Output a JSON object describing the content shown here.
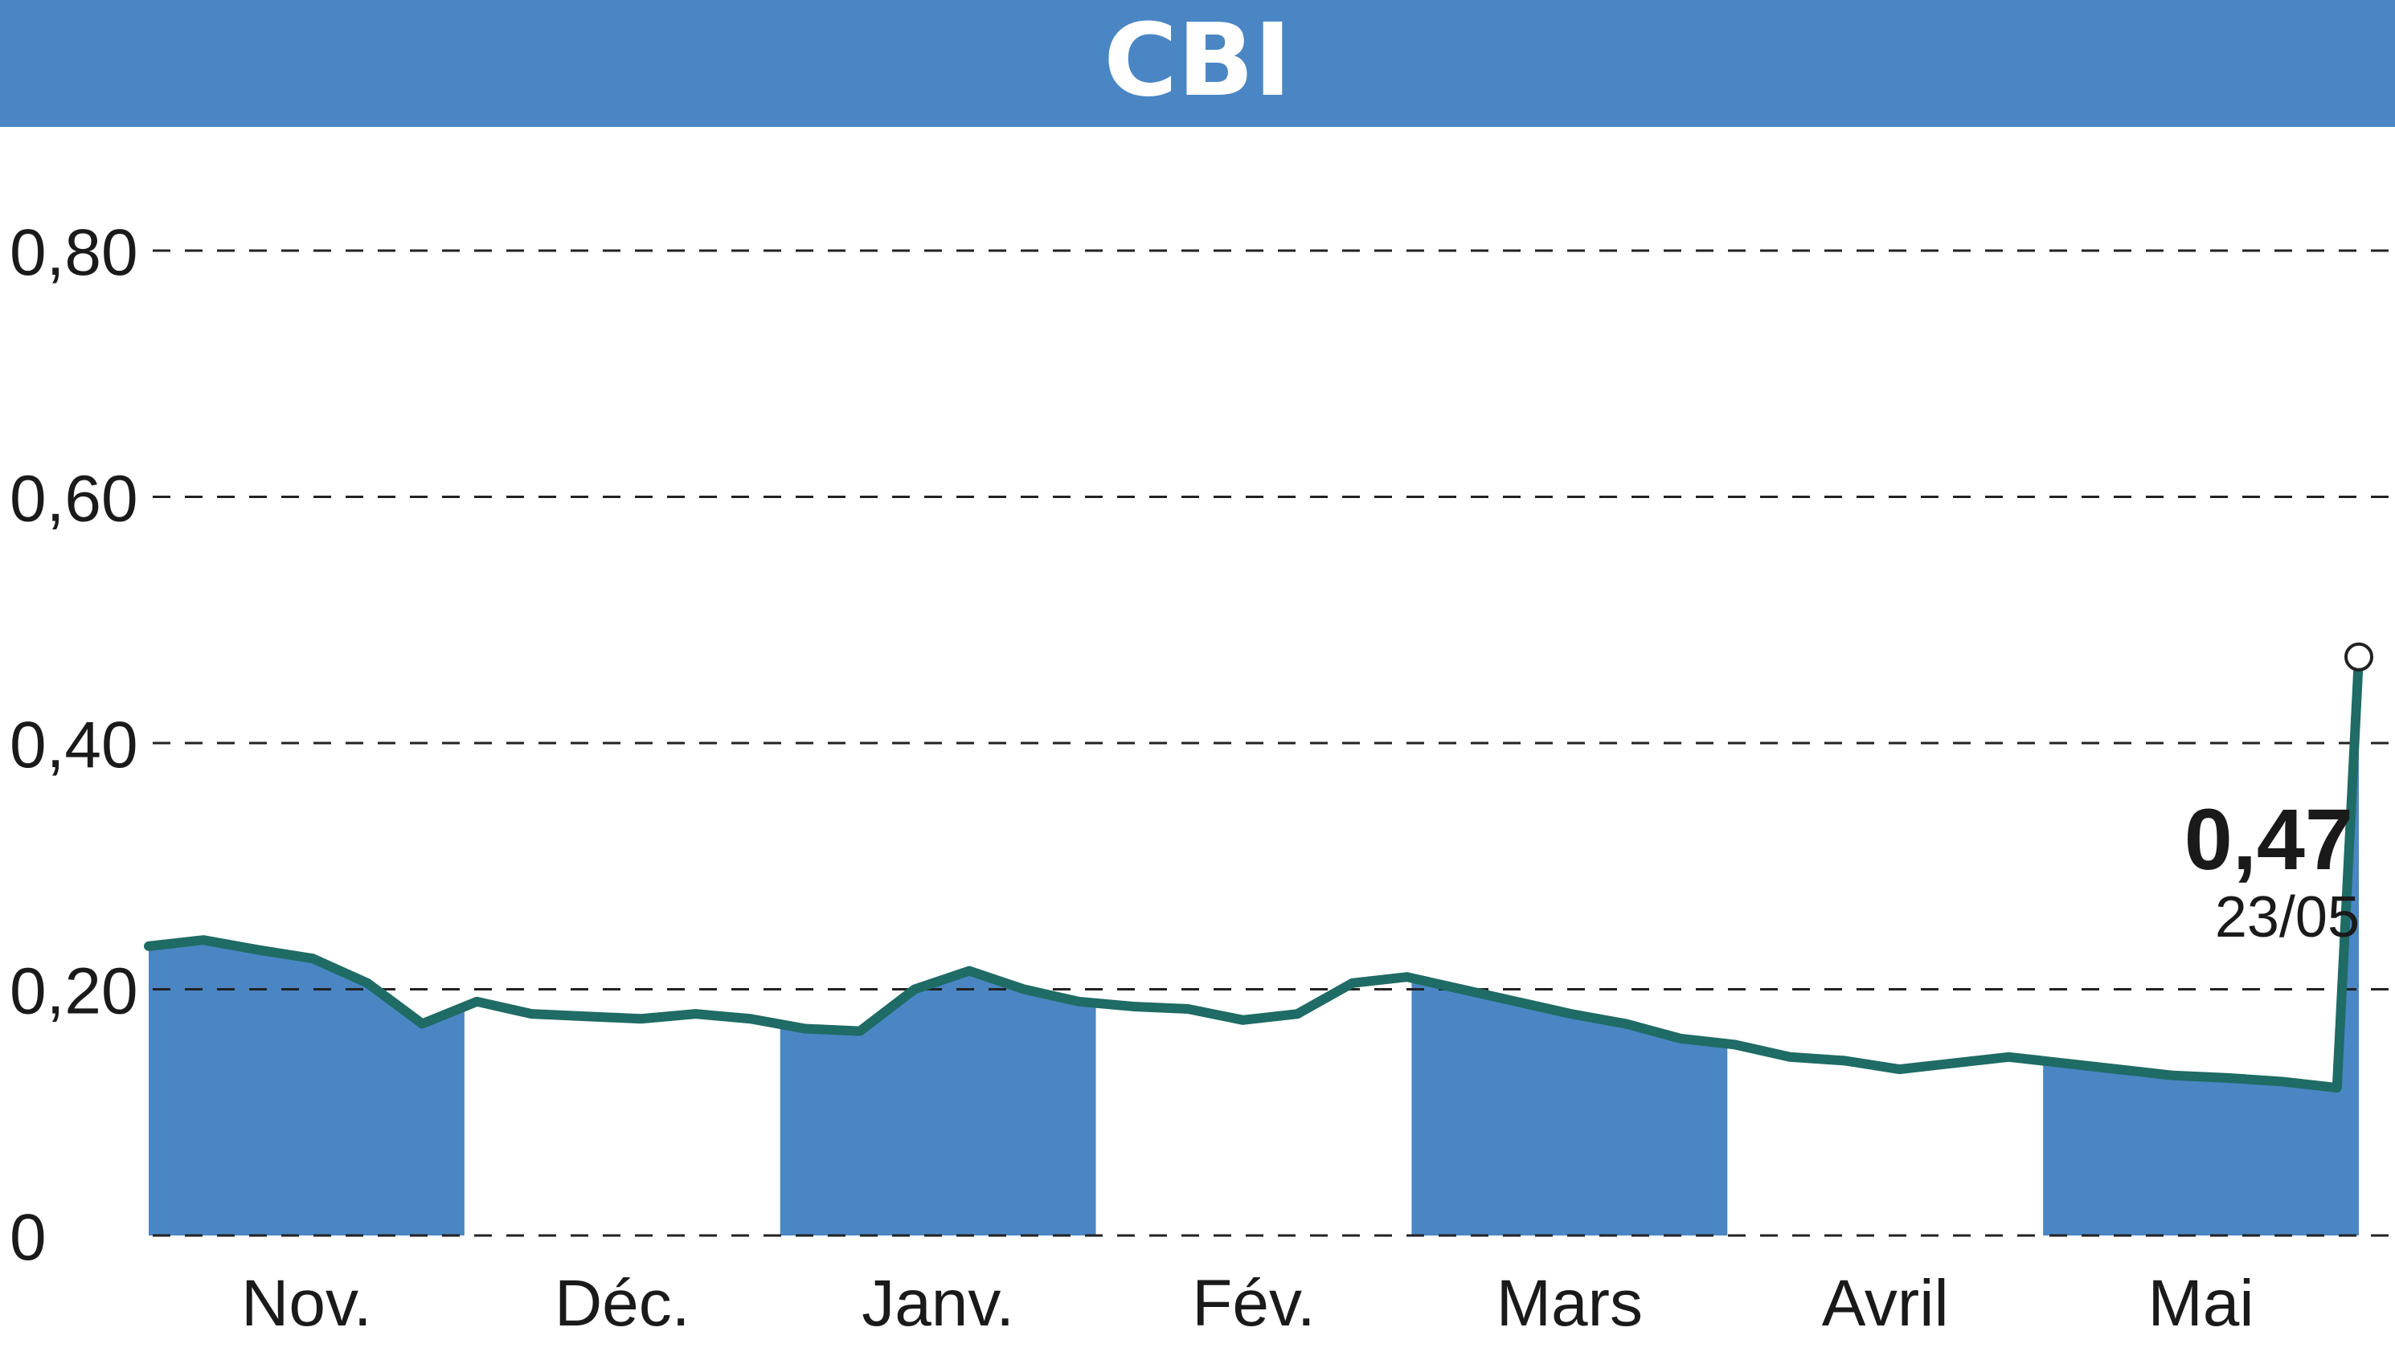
{
  "title": "CBI",
  "colors": {
    "banner": "#4a86c4",
    "fill": "#4a86c4",
    "line": "#1f6b65",
    "grid": "#222222",
    "text": "#1a1a1a"
  },
  "chart_data": {
    "type": "line",
    "title": "CBI",
    "xlabel": "",
    "ylabel": "",
    "ylim": [
      0,
      0.8
    ],
    "grid": true,
    "y_ticks": [
      "0",
      "0,20",
      "0,40",
      "0,60",
      "0,80"
    ],
    "y_tick_values": [
      0,
      0.2,
      0.4,
      0.6,
      0.8
    ],
    "months": [
      "Nov.",
      "Déc.",
      "Janv.",
      "Fév.",
      "Mars",
      "Avril",
      "Mai"
    ],
    "shaded_months": [
      "Nov.",
      "Janv.",
      "Mars",
      "Mai"
    ],
    "last_value": "0,47",
    "last_date": "23/05",
    "series": [
      {
        "x": [
          0,
          5,
          10,
          15,
          20,
          25,
          30,
          35,
          40,
          45,
          50,
          55,
          60,
          65,
          70,
          75,
          80,
          85,
          90,
          95,
          100,
          105,
          110,
          115,
          120,
          125,
          130,
          135,
          140,
          145,
          150,
          155,
          160,
          165,
          170,
          175,
          180,
          185,
          190,
          195,
          200,
          202
        ],
        "y": [
          0.235,
          0.24,
          0.232,
          0.225,
          0.205,
          0.172,
          0.19,
          0.18,
          0.178,
          0.176,
          0.18,
          0.176,
          0.168,
          0.166,
          0.2,
          0.215,
          0.2,
          0.19,
          0.186,
          0.184,
          0.175,
          0.18,
          0.205,
          0.21,
          0.2,
          0.19,
          0.18,
          0.172,
          0.16,
          0.155,
          0.145,
          0.142,
          0.135,
          0.14,
          0.145,
          0.14,
          0.135,
          0.13,
          0.128,
          0.125,
          0.12,
          0.47
        ]
      }
    ]
  }
}
